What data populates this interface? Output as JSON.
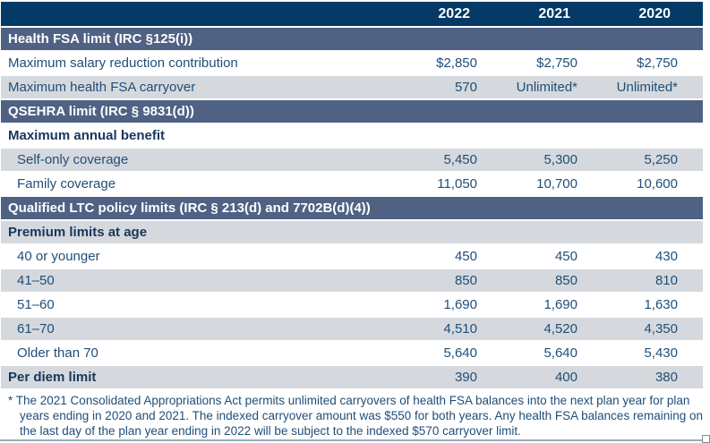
{
  "table": {
    "columns": [
      "2022",
      "2021",
      "2020"
    ],
    "rows": [
      {
        "type": "section",
        "label": "Health FSA limit (IRC §125(i))"
      },
      {
        "type": "data",
        "label": "Maximum salary reduction contribution",
        "values": [
          "$2,850",
          "$2,750",
          "$2,750"
        ]
      },
      {
        "type": "data",
        "label": "Maximum health FSA carryover",
        "values": [
          "570",
          "Unlimited*",
          "Unlimited*"
        ]
      },
      {
        "type": "section",
        "label": "QSEHRA limit (IRC § 9831(d))"
      },
      {
        "type": "subheader",
        "label": "Maximum annual benefit"
      },
      {
        "type": "data",
        "label": "Self-only coverage",
        "values": [
          "5,450",
          "5,300",
          "5,250"
        ]
      },
      {
        "type": "data",
        "label": "Family coverage",
        "values": [
          "11,050",
          "10,700",
          "10,600"
        ]
      },
      {
        "type": "section",
        "label": "Qualified LTC policy limits (IRC § 213(d) and 7702B(d)(4))"
      },
      {
        "type": "subheader",
        "label": "Premium limits at age"
      },
      {
        "type": "data",
        "label": "40 or younger",
        "values": [
          "450",
          "450",
          "430"
        ]
      },
      {
        "type": "data",
        "label": "41–50",
        "values": [
          "850",
          "850",
          "810"
        ]
      },
      {
        "type": "data",
        "label": "51–60",
        "values": [
          "1,690",
          "1,690",
          "1,630"
        ]
      },
      {
        "type": "data",
        "label": "61–70",
        "values": [
          "4,510",
          "4,520",
          "4,350"
        ]
      },
      {
        "type": "data",
        "label": "Older than 70",
        "values": [
          "5,640",
          "5,640",
          "5,430"
        ]
      },
      {
        "type": "data_bold",
        "label": "Per diem limit",
        "values": [
          "390",
          "400",
          "380"
        ]
      }
    ]
  },
  "footnote": "* The 2021 Consolidated Appropriations Act permits unlimited carryovers of health FSA balances into the next plan year for plan years ending in 2020 and 2021. The indexed carryover amount was $550 for both years. Any health FSA balances remaining on the last day of the plan year ending in 2022 will be subject to the indexed $570 carryover limit.",
  "colors": {
    "header_navy": "#053A66",
    "section_slate": "#4F6284",
    "row_gray": "#D5D9DD",
    "text_navy": "#1F4E79",
    "subheader_navy": "#17365D"
  }
}
